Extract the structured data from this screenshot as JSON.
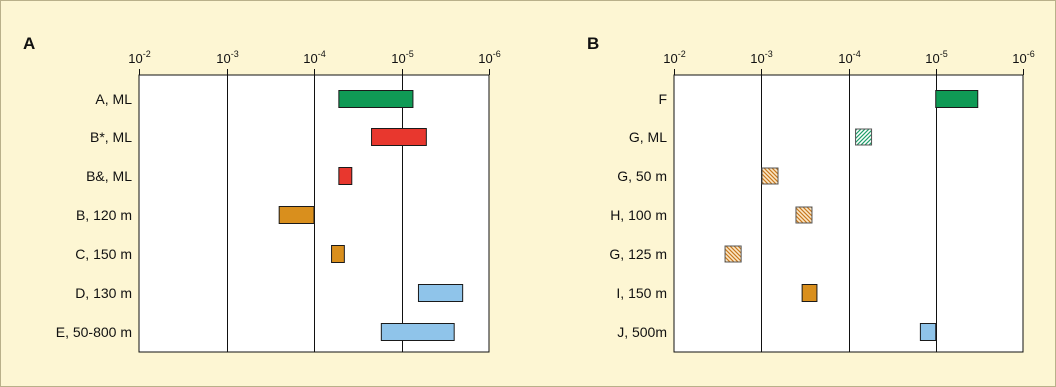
{
  "colors": {
    "background": "#fdf6d3",
    "plot_background": "#ffffff",
    "green": "#0f9a55",
    "red": "#e8372e",
    "orange": "#d98f1d",
    "blue": "#8fc4ea",
    "hatch_green": "#1f9e6b",
    "hatch_orange": "#c8791f"
  },
  "chart_data": [
    {
      "type": "bar",
      "panel_label": "A",
      "x_scale": "log",
      "x_reversed": true,
      "x_tick_values": [
        0.01,
        0.001,
        0.0001,
        1e-05,
        1e-06
      ],
      "x_tick_labels": [
        {
          "base": "10",
          "exp": "-2"
        },
        {
          "base": "10",
          "exp": "-3"
        },
        {
          "base": "10",
          "exp": "-4"
        },
        {
          "base": "10",
          "exp": "-5"
        },
        {
          "base": "10",
          "exp": "-6"
        }
      ],
      "xlim": [
        0.01,
        1e-06
      ],
      "grid": true,
      "rows": [
        {
          "label": "A, ML",
          "range": [
            5.2e-05,
            7.4e-06
          ],
          "color": "green",
          "pattern": "solid"
        },
        {
          "label": "B*, ML",
          "range": [
            2.2e-05,
            5.2e-06
          ],
          "color": "red",
          "pattern": "solid"
        },
        {
          "label": "B&, ML",
          "range": [
            5.2e-05,
            3.7e-05
          ],
          "color": "red",
          "pattern": "solid"
        },
        {
          "label": "B, 120 m",
          "range": [
            0.00025,
            0.0001
          ],
          "color": "orange",
          "pattern": "solid"
        },
        {
          "label": "C, 150 m",
          "range": [
            6.3e-05,
            4.5e-05
          ],
          "color": "orange",
          "pattern": "solid"
        },
        {
          "label": "D, 130 m",
          "range": [
            6.4e-06,
            2e-06
          ],
          "color": "blue",
          "pattern": "solid"
        },
        {
          "label": "E, 50-800 m",
          "range": [
            1.7e-05,
            2.5e-06
          ],
          "color": "blue",
          "pattern": "solid"
        }
      ]
    },
    {
      "type": "bar",
      "panel_label": "B",
      "x_scale": "log",
      "x_reversed": true,
      "x_tick_values": [
        0.01,
        0.001,
        0.0001,
        1e-05,
        1e-06
      ],
      "x_tick_labels": [
        {
          "base": "10",
          "exp": "-2"
        },
        {
          "base": "10",
          "exp": "-3"
        },
        {
          "base": "10",
          "exp": "-4"
        },
        {
          "base": "10",
          "exp": "-5"
        },
        {
          "base": "10",
          "exp": "-6"
        }
      ],
      "xlim": [
        0.01,
        1e-06
      ],
      "grid": true,
      "rows": [
        {
          "label": "F",
          "range": [
            1e-05,
            3.3e-06
          ],
          "color": "green",
          "pattern": "solid"
        },
        {
          "label": "G, ML",
          "range": [
            8.3e-05,
            5.8e-05
          ],
          "color": "green",
          "pattern": "hatch"
        },
        {
          "label": "G, 50 m",
          "range": [
            0.00098,
            0.00068
          ],
          "color": "orange",
          "pattern": "hatch"
        },
        {
          "label": "H, 100 m",
          "range": [
            0.0004,
            0.00027
          ],
          "color": "orange",
          "pattern": "hatch"
        },
        {
          "label": "G, 125 m",
          "range": [
            0.0026,
            0.0017
          ],
          "color": "orange",
          "pattern": "hatch"
        },
        {
          "label": "I, 150 m",
          "range": [
            0.00034,
            0.00023
          ],
          "color": "orange",
          "pattern": "solid"
        },
        {
          "label": "J, 500m",
          "range": [
            1.5e-05,
            1e-05
          ],
          "color": "blue",
          "pattern": "solid"
        }
      ]
    }
  ]
}
